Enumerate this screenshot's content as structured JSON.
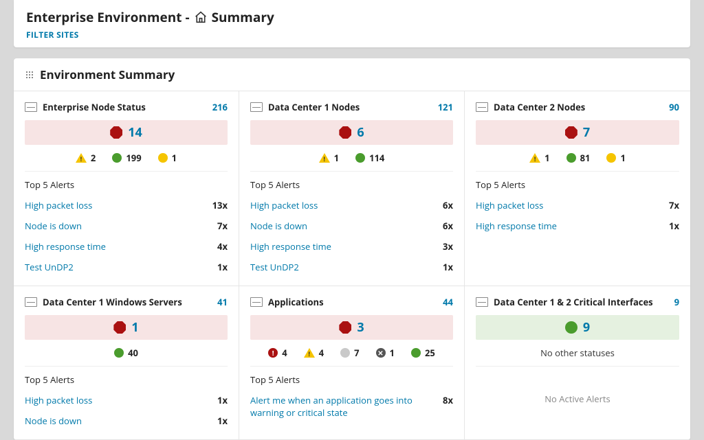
{
  "header": {
    "title_prefix": "Enterprise Environment -",
    "title_suffix": "Summary",
    "filter_label": "FILTER SITES"
  },
  "section": {
    "title": "Environment Summary"
  },
  "colors": {
    "link": "#0079aa",
    "banner_red": "#f7e4e4",
    "banner_green": "#e5f1e0",
    "critical": "#a11",
    "warning": "#f5c400",
    "ok": "#4a9c2d",
    "unknown": "#c9c9c9",
    "muted": "#555"
  },
  "cards": [
    {
      "id": "enterprise-node-status",
      "title": "Enterprise Node Status",
      "count": 216,
      "banner": {
        "type": "critical",
        "value": 14
      },
      "statuses": [
        {
          "kind": "warning",
          "value": 2
        },
        {
          "kind": "ok",
          "value": 199
        },
        {
          "kind": "unknown-yellow",
          "value": 1
        }
      ],
      "alerts_title": "Top 5 Alerts",
      "alerts": [
        {
          "label": "High packet loss",
          "count": "13x"
        },
        {
          "label": "Node is down",
          "count": "7x"
        },
        {
          "label": "High response time",
          "count": "4x"
        },
        {
          "label": "Test UnDP2",
          "count": "1x"
        }
      ]
    },
    {
      "id": "dc1-nodes",
      "title": "Data Center 1 Nodes",
      "count": 121,
      "banner": {
        "type": "critical",
        "value": 6
      },
      "statuses": [
        {
          "kind": "warning",
          "value": 1
        },
        {
          "kind": "ok",
          "value": 114
        }
      ],
      "alerts_title": "Top 5 Alerts",
      "alerts": [
        {
          "label": "High packet loss",
          "count": "6x"
        },
        {
          "label": "Node is down",
          "count": "6x"
        },
        {
          "label": "High response time",
          "count": "3x"
        },
        {
          "label": "Test UnDP2",
          "count": "1x"
        }
      ]
    },
    {
      "id": "dc2-nodes",
      "title": "Data Center 2 Nodes",
      "count": 90,
      "banner": {
        "type": "critical",
        "value": 7
      },
      "statuses": [
        {
          "kind": "warning",
          "value": 1
        },
        {
          "kind": "ok",
          "value": 81
        },
        {
          "kind": "unknown-yellow",
          "value": 1
        }
      ],
      "alerts_title": "Top 5 Alerts",
      "alerts": [
        {
          "label": "High packet loss",
          "count": "7x"
        },
        {
          "label": "High response time",
          "count": "1x"
        }
      ]
    },
    {
      "id": "dc1-windows",
      "title": "Data Center 1 Windows Servers",
      "count": 41,
      "banner": {
        "type": "critical",
        "value": 1
      },
      "statuses": [
        {
          "kind": "ok",
          "value": 40
        }
      ],
      "alerts_title": "Top 5 Alerts",
      "alerts": [
        {
          "label": "High packet loss",
          "count": "1x"
        },
        {
          "label": "Node is down",
          "count": "1x"
        }
      ]
    },
    {
      "id": "applications",
      "title": "Applications",
      "count": 44,
      "banner": {
        "type": "critical",
        "value": 3
      },
      "statuses": [
        {
          "kind": "exclam",
          "value": 4
        },
        {
          "kind": "warning",
          "value": 4
        },
        {
          "kind": "grey",
          "value": 7
        },
        {
          "kind": "x",
          "value": 1
        },
        {
          "kind": "ok",
          "value": 25
        }
      ],
      "alerts_title": "Top 5 Alerts",
      "alerts": [
        {
          "label": "Alert me when an application goes into warning or critical state",
          "count": "8x"
        }
      ]
    },
    {
      "id": "critical-interfaces",
      "title": "Data Center 1 & 2 Critical Interfaces",
      "count": 9,
      "banner": {
        "type": "ok",
        "value": 9
      },
      "no_statuses_label": "No other statuses",
      "no_alerts_label": "No Active Alerts"
    }
  ]
}
